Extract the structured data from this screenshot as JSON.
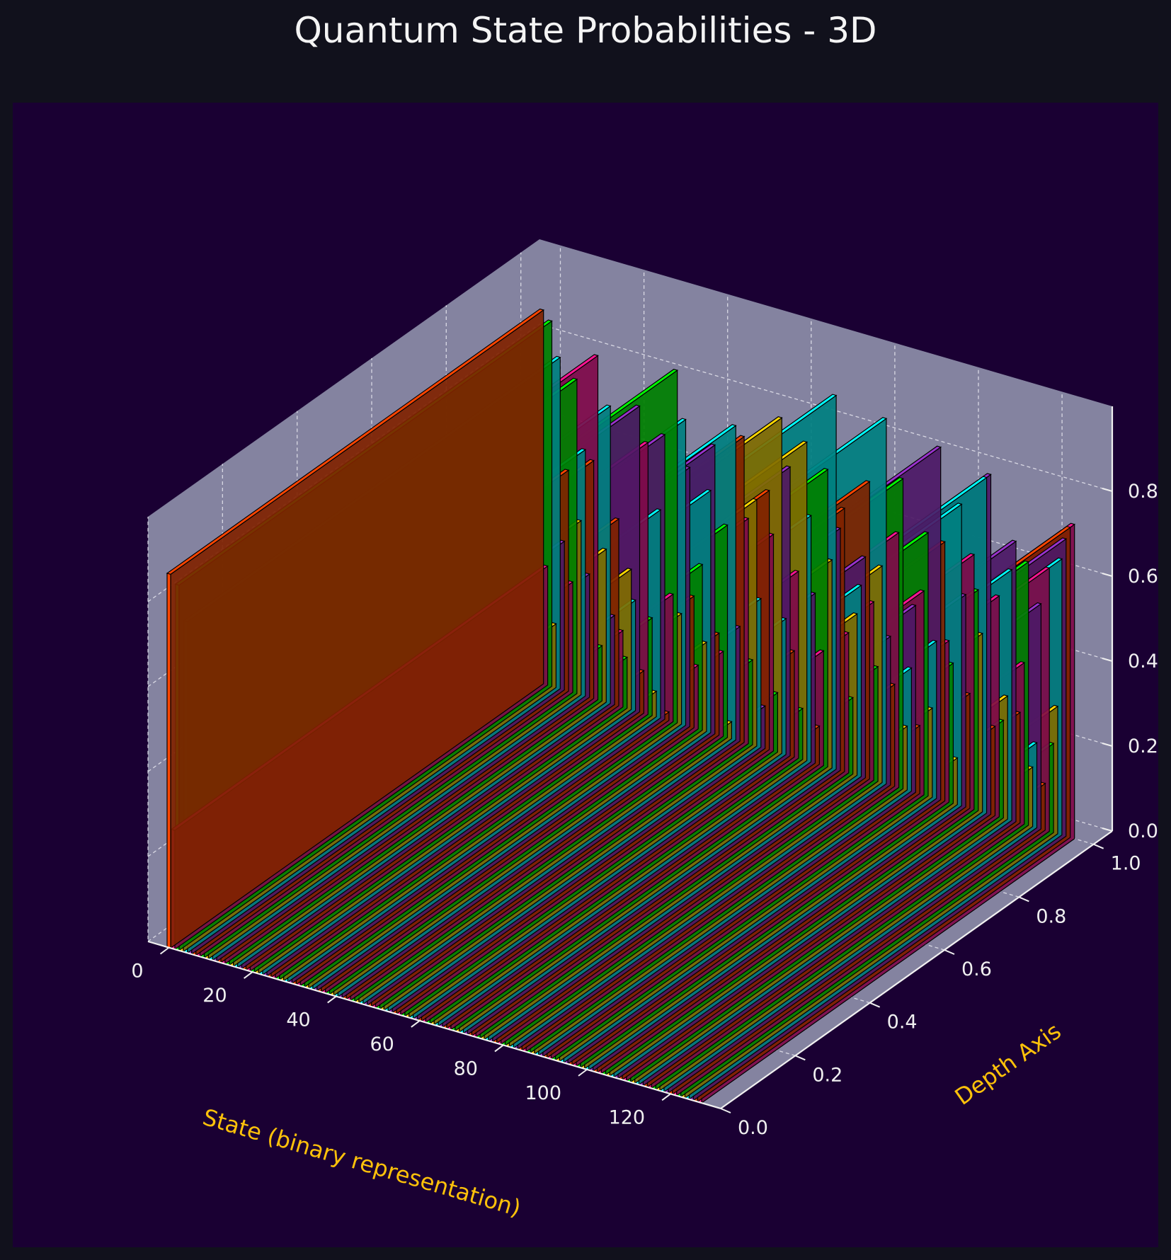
{
  "chart_data": {
    "type": "bar3d",
    "title": "Quantum State Probabilities - 3D",
    "xlabel": "State (binary representation)",
    "ylabel": "Depth Axis",
    "zlabel": "",
    "x_ticks": [
      0,
      20,
      40,
      60,
      80,
      100,
      120
    ],
    "y_ticks": [
      "0.0",
      "0.2",
      "0.4",
      "0.6",
      "0.8",
      "1.0"
    ],
    "z_ticks": [
      "0.0",
      "0.2",
      "0.4",
      "0.6",
      "0.8"
    ],
    "xlim": [
      -5,
      132
    ],
    "ylim": [
      0,
      1.05
    ],
    "zlim": [
      0,
      1.0
    ],
    "bar_depth": [
      0,
      1
    ],
    "grid": true,
    "palette": [
      "#ff4500",
      "#ff1493",
      "#00ff00",
      "#ffd700",
      "#00ffff",
      "#9932cc"
    ],
    "colors": {
      "figure_bg": "#11111c",
      "axes_bg": "#1a0033",
      "pane": "#8a8aa6",
      "title": "#f4f4f4",
      "tick": "#f0f0f0",
      "axis_label": "#ffc20a"
    },
    "states": [
      0,
      1,
      2,
      3,
      4,
      5,
      6,
      7,
      8,
      9,
      10,
      11,
      12,
      13,
      14,
      15,
      16,
      17,
      18,
      19,
      20,
      21,
      22,
      23,
      24,
      25,
      26,
      27,
      28,
      29,
      30,
      31,
      32,
      33,
      34,
      35,
      36,
      37,
      38,
      39,
      40,
      41,
      42,
      43,
      44,
      45,
      46,
      47,
      48,
      49,
      50,
      51,
      52,
      53,
      54,
      55,
      56,
      57,
      58,
      59,
      60,
      61,
      62,
      63,
      64,
      65,
      66,
      67,
      68,
      69,
      70,
      71,
      72,
      73,
      74,
      75,
      76,
      77,
      78,
      79,
      80,
      81,
      82,
      83,
      84,
      85,
      86,
      87,
      88,
      89,
      90,
      91,
      92,
      93,
      94,
      95,
      96,
      97,
      98,
      99,
      100,
      101,
      102,
      103,
      104,
      105,
      106,
      107,
      108,
      109,
      110,
      111,
      112,
      113,
      114,
      115,
      116,
      117,
      118,
      119,
      120,
      121,
      122,
      123,
      124,
      125,
      126,
      127
    ],
    "probabilities": [
      0.88,
      0.28,
      0.86,
      0.15,
      0.78,
      0.35,
      0.52,
      0.26,
      0.74,
      0.41,
      0.58,
      0.29,
      0.56,
      0.81,
      0.13,
      0.36,
      0.7,
      0.21,
      0.44,
      0.18,
      0.12,
      0.33,
      0.26,
      0.72,
      0.1,
      0.64,
      0.23,
      0.06,
      0.49,
      0.67,
      0.02,
      0.3,
      0.83,
      0.26,
      0.72,
      0.61,
      0.31,
      0.15,
      0.39,
      0.21,
      0.57,
      0.68,
      0.24,
      0.2,
      0.5,
      0.04,
      0.74,
      0.27,
      0.72,
      0.53,
      0.2,
      0.58,
      0.35,
      0.1,
      0.61,
      0.51,
      0.14,
      0.79,
      0.32,
      0.68,
      0.25,
      0.44,
      0.12,
      0.75,
      0.58,
      0.4,
      0.09,
      0.27,
      0.7,
      0.49,
      0.88,
      0.57,
      0.62,
      0.33,
      0.18,
      0.38,
      0.45,
      0.52,
      0.7,
      0.42,
      0.27,
      0.51,
      0.86,
      0.35,
      0.24,
      0.6,
      0.73,
      0.15,
      0.29,
      0.44,
      0.16,
      0.48,
      0.62,
      0.21,
      0.37,
      0.83,
      0.61,
      0.38,
      0.33,
      0.11,
      0.71,
      0.5,
      0.27,
      0.6,
      0.52,
      0.42,
      0.79,
      0.8,
      0.21,
      0.52,
      0.23,
      0.29,
      0.59,
      0.66,
      0.26,
      0.38,
      0.62,
      0.14,
      0.2,
      0.53,
      0.11,
      0.62,
      0.21,
      0.3,
      0.65,
      0.7,
      0.73,
      0.74
    ]
  }
}
